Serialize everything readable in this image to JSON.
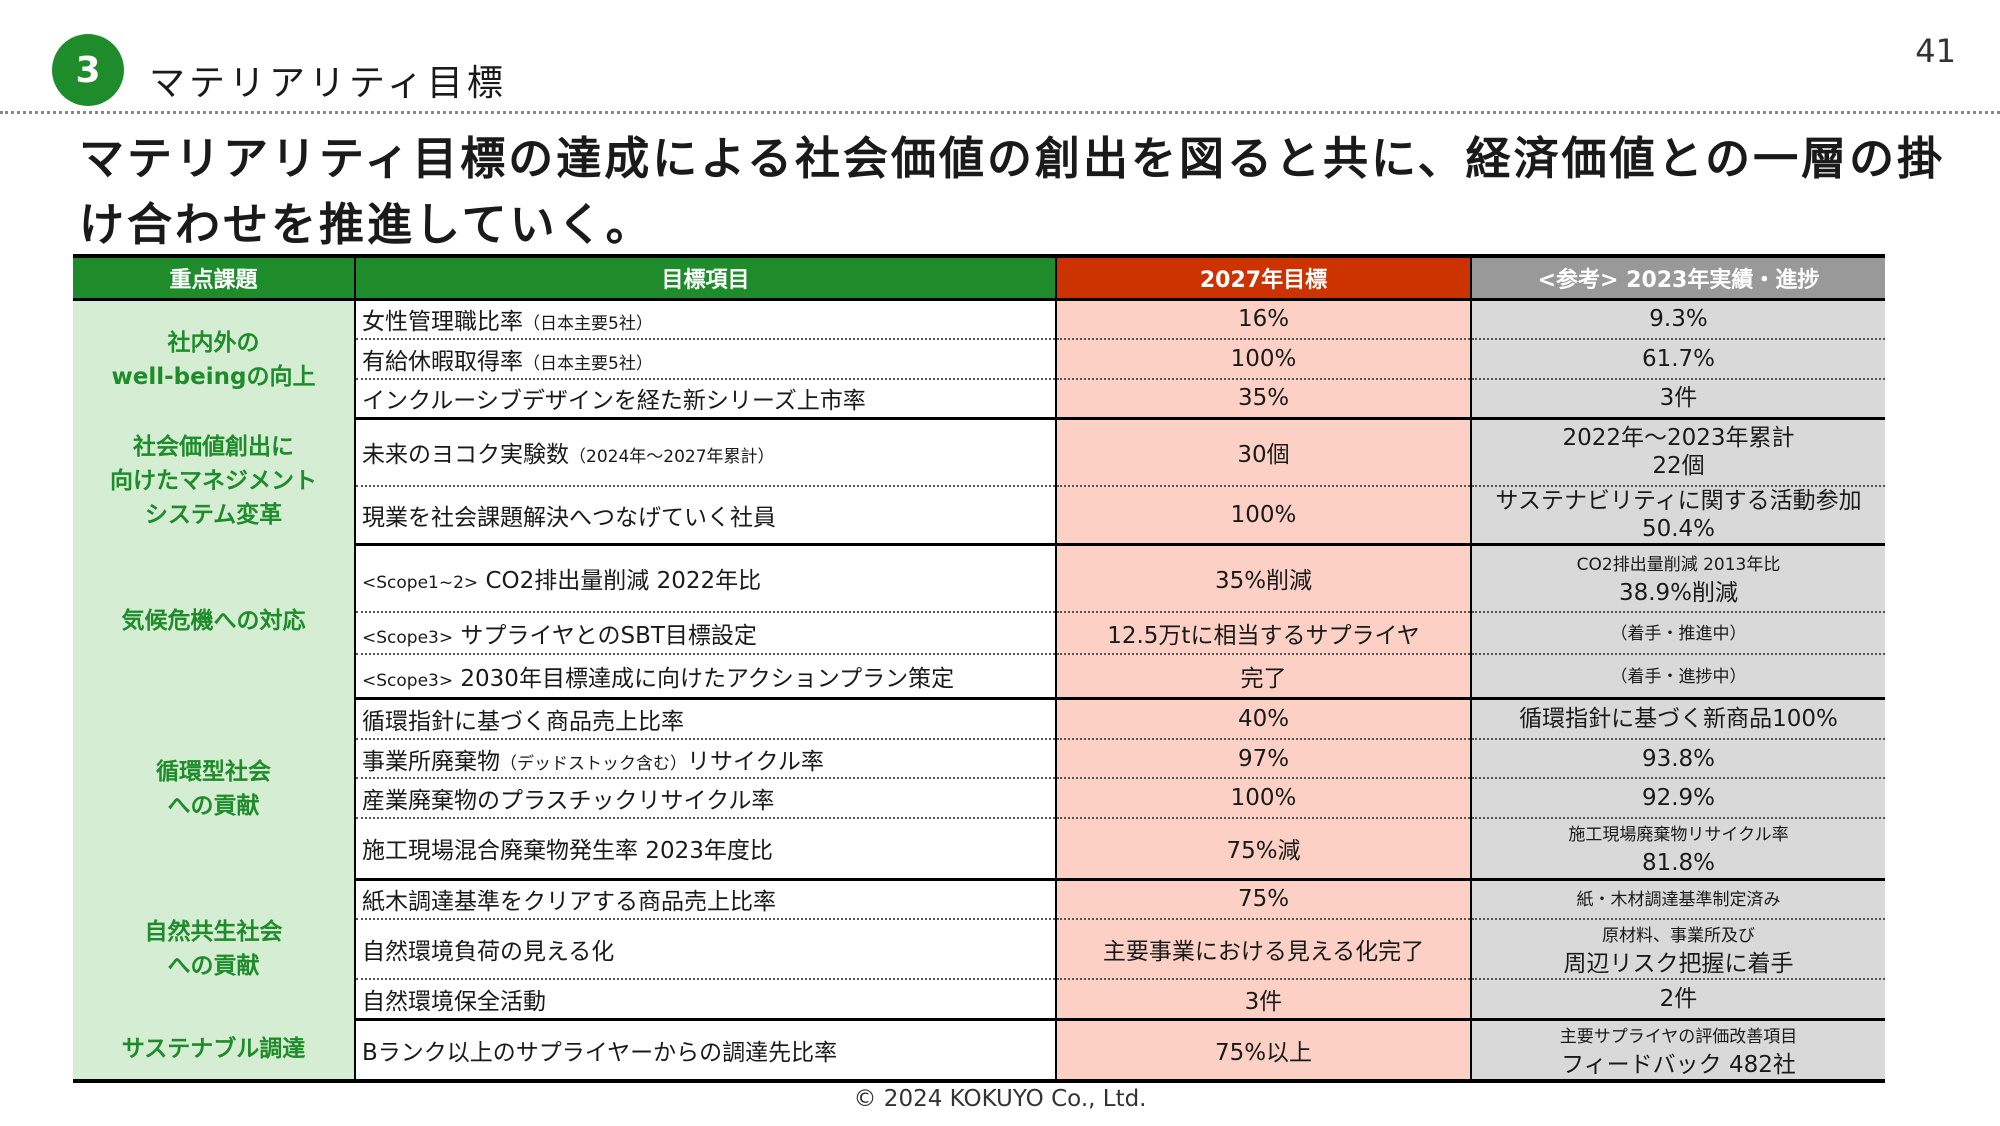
{
  "section": {
    "number": "3",
    "title": "マテリアリティ目標"
  },
  "page_number": "41",
  "headline": "マテリアリティ目標の達成による社会価値の創出を図ると共に、経済価値との一層の掛け合わせを推進していく。",
  "table": {
    "headers": [
      "重点課題",
      "目標項目",
      "2027年目標",
      "<参考> 2023年実績・進捗"
    ],
    "groups": [
      {
        "theme": [
          "社内外の",
          "well-beingの向上"
        ],
        "rows": [
          {
            "prefix": "",
            "text": "女性管理職比率",
            "note": "（日本主要5社）",
            "target": "16%",
            "actual": [
              "9.3%"
            ],
            "actual_small": false
          },
          {
            "prefix": "",
            "text": "有給休暇取得率",
            "note": "（日本主要5社）",
            "target": "100%",
            "actual": [
              "61.7%"
            ],
            "actual_small": false
          },
          {
            "prefix": "",
            "text": "インクルーシブデザインを経た新シリーズ上市率",
            "note": "",
            "target": "35%",
            "actual": [
              "3件"
            ],
            "actual_small": false
          }
        ]
      },
      {
        "theme": [
          "社会価値創出に",
          "向けたマネジメント",
          "システム変革"
        ],
        "rows": [
          {
            "prefix": "",
            "text": "未来のヨコク実験数",
            "note": "（2024年～2027年累計）",
            "target": "30個",
            "actual": [
              "2022年～2023年累計",
              "22個"
            ],
            "actual_small": false
          },
          {
            "prefix": "",
            "text": "現業を社会課題解決へつなげていく社員",
            "note": "",
            "target": "100%",
            "actual": [
              "サステナビリティに関する活動参加",
              "50.4%"
            ],
            "actual_small": false
          }
        ]
      },
      {
        "theme": [
          "気候危機への対応"
        ],
        "rows": [
          {
            "prefix": "<Scope1~2>",
            "text": "CO2排出量削減 2022年比",
            "note": "",
            "target": "35%削減",
            "actual": [
              "CO2排出量削減 2013年比",
              "38.9%削減"
            ],
            "actual_small": true
          },
          {
            "prefix": "<Scope3>",
            "text": "サプライヤとのSBT目標設定",
            "note": "",
            "target": "12.5万tに相当するサプライヤ",
            "actual": [
              "（着手・推進中）"
            ],
            "actual_small": true
          },
          {
            "prefix": "<Scope3>",
            "text": "2030年目標達成に向けたアクションプラン策定",
            "note": "",
            "target": "完了",
            "actual": [
              "（着手・進捗中）"
            ],
            "actual_small": true
          }
        ]
      },
      {
        "theme": [
          "循環型社会",
          "への貢献"
        ],
        "rows": [
          {
            "prefix": "",
            "text": "循環指針に基づく商品売上比率",
            "note": "",
            "target": "40%",
            "actual": [
              "循環指針に基づく新商品100%"
            ],
            "actual_small": false
          },
          {
            "prefix": "",
            "text": "事業所廃棄物",
            "note": "（デッドストック含む）",
            "text2": "リサイクル率",
            "target": "97%",
            "actual": [
              "93.8%"
            ],
            "actual_small": false
          },
          {
            "prefix": "",
            "text": "産業廃棄物のプラスチックリサイクル率",
            "note": "",
            "target": "100%",
            "actual": [
              "92.9%"
            ],
            "actual_small": false
          },
          {
            "prefix": "",
            "text": "施工現場混合廃棄物発生率 2023年度比",
            "note": "",
            "target": "75%減",
            "actual": [
              "施工現場廃棄物リサイクル率",
              "81.8%"
            ],
            "actual_small": true
          }
        ]
      },
      {
        "theme": [
          "自然共生社会",
          "への貢献"
        ],
        "rows": [
          {
            "prefix": "",
            "text": "紙木調達基準をクリアする商品売上比率",
            "note": "",
            "target": "75%",
            "actual": [
              "紙・木材調達基準制定済み"
            ],
            "actual_small": true
          },
          {
            "prefix": "",
            "text": "自然環境負荷の見える化",
            "note": "",
            "target": "主要事業における見える化完了",
            "actual": [
              "原材料、事業所及び",
              "周辺リスク把握に着手"
            ],
            "actual_small": true
          },
          {
            "prefix": "",
            "text": "自然環境保全活動",
            "note": "",
            "target": "3件",
            "actual": [
              "2件"
            ],
            "actual_small": false
          }
        ]
      },
      {
        "theme": [
          "サステナブル調達"
        ],
        "rows": [
          {
            "prefix": "",
            "text": "Bランク以上のサプライヤーからの調達先比率",
            "note": "",
            "target": "75%以上",
            "actual": [
              "主要サプライヤの評価改善項目",
              "フィードバック 482社"
            ],
            "actual_small": true
          }
        ]
      }
    ]
  },
  "footer": "© 2024 KOKUYO Co., Ltd.",
  "colors": {
    "green": "#1e8c2a",
    "red": "#cc3300",
    "gray": "#999999",
    "pink": "#fcd0c4",
    "light_green": "#d5edd2",
    "light_gray": "#d9d9d9"
  }
}
